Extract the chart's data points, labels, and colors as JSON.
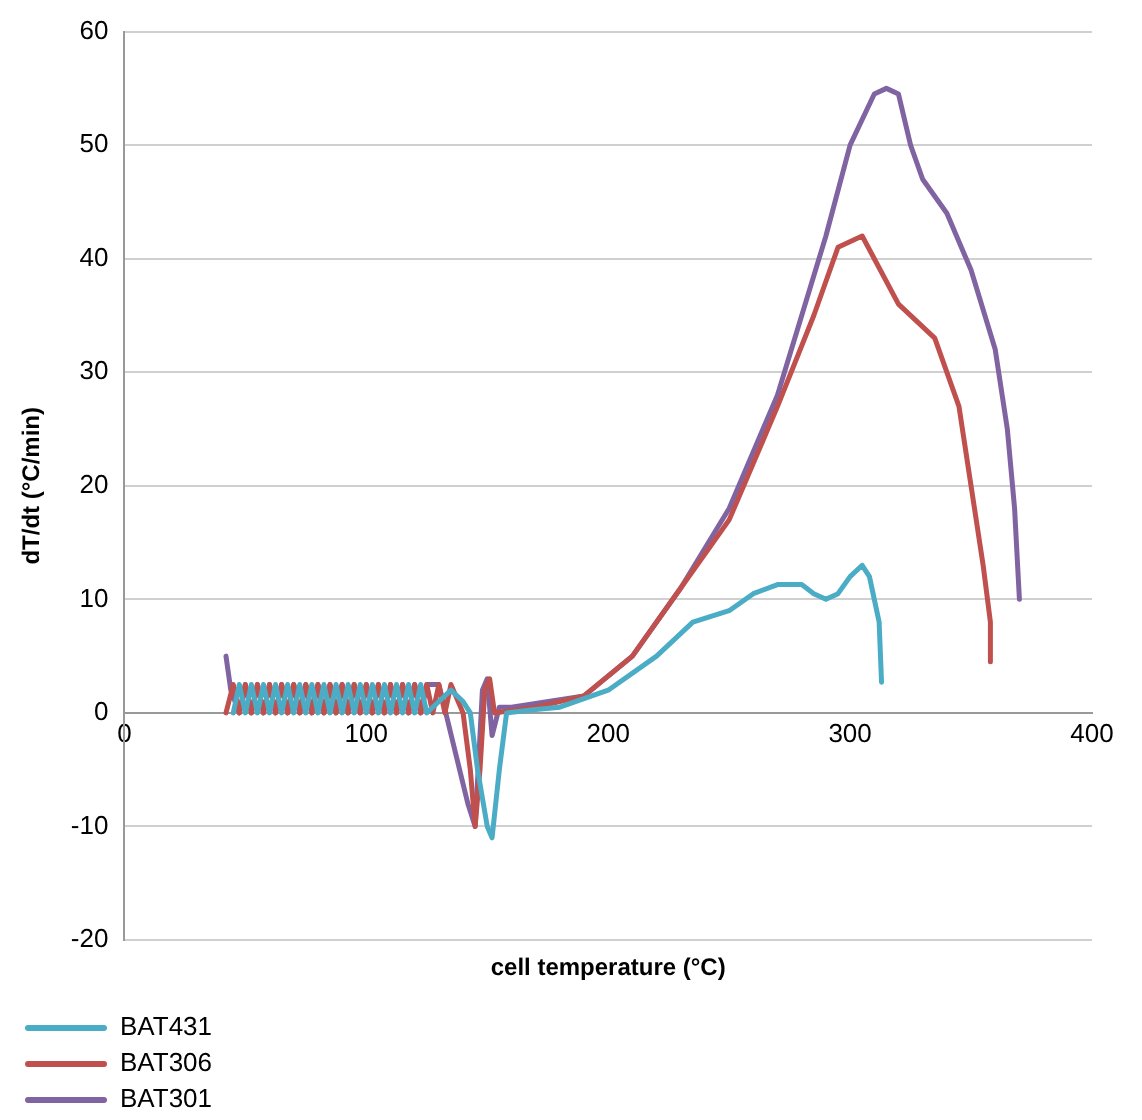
{
  "chart_data": {
    "type": "line",
    "xlabel": "cell temperature (°C)",
    "ylabel": "dT/dt (°C/min)",
    "xlim": [
      0,
      400
    ],
    "xticks": [
      0,
      100,
      200,
      300,
      400
    ],
    "ylim": [
      -20,
      60
    ],
    "yticks": [
      -20,
      -10,
      0,
      10,
      20,
      30,
      40,
      50,
      60
    ],
    "grid": "y",
    "legend": "bottom",
    "marker": "none",
    "line_style": "solid",
    "series": [
      {
        "name": "BAT431",
        "color": "#4bacc6",
        "x": [
          45,
          47.5,
          50,
          52.5,
          55,
          57.5,
          60,
          62.5,
          65,
          67.5,
          70,
          72.5,
          75,
          77.5,
          80,
          82.5,
          85,
          87.5,
          90,
          92.5,
          95,
          97.5,
          100,
          102.5,
          105,
          107.5,
          110,
          112.5,
          115,
          117.5,
          120,
          122.5,
          125,
          130,
          135,
          140,
          143,
          146,
          150,
          152,
          155,
          158,
          170,
          180,
          200,
          220,
          235,
          250,
          260,
          270,
          280,
          285,
          290,
          295,
          300,
          305,
          308,
          312,
          313
        ],
        "values": [
          0,
          2.5,
          0,
          2.5,
          0,
          2.5,
          0,
          2.5,
          0,
          2.5,
          0,
          2.5,
          0,
          2.5,
          0,
          2.5,
          0,
          2.5,
          0,
          2.5,
          0,
          2.5,
          0,
          2.5,
          0,
          2.5,
          0,
          2.5,
          0,
          2.5,
          0,
          2.5,
          0,
          1,
          2,
          1,
          0,
          -5,
          -10,
          -11,
          -5,
          0,
          0.3,
          0.5,
          2,
          5,
          8,
          9,
          10.5,
          11.3,
          11.3,
          10.5,
          10,
          10.5,
          12,
          13,
          12,
          8,
          2.7
        ]
      },
      {
        "name": "BAT306",
        "color": "#c0504d",
        "x": [
          42,
          45,
          47.5,
          50,
          52.5,
          55,
          57.5,
          60,
          62.5,
          65,
          67.5,
          70,
          72.5,
          75,
          77.5,
          80,
          82.5,
          85,
          87.5,
          90,
          92.5,
          95,
          97.5,
          100,
          102.5,
          105,
          107.5,
          110,
          112.5,
          115,
          117.5,
          120,
          122.5,
          125,
          127.5,
          130,
          132.5,
          135,
          140,
          143,
          145,
          147,
          149,
          151,
          153,
          170,
          190,
          210,
          230,
          250,
          270,
          285,
          295,
          305,
          310,
          320,
          335,
          345,
          350,
          355,
          358,
          358
        ],
        "values": [
          0,
          2.5,
          0,
          2.5,
          0,
          2.5,
          0,
          2.5,
          0,
          2.5,
          0,
          2.5,
          0,
          2.5,
          0,
          2.5,
          0,
          2.5,
          0,
          2.5,
          0,
          2.5,
          0,
          2.5,
          0,
          2.5,
          0,
          2.5,
          0,
          2.5,
          0,
          2.5,
          0,
          2.5,
          0,
          2.5,
          0,
          2.5,
          0,
          -5,
          -10,
          -5,
          2,
          3,
          0,
          0.5,
          1.5,
          5,
          11,
          17,
          27,
          35,
          41,
          42,
          40,
          36,
          33,
          27,
          20,
          13,
          8,
          4.5
        ]
      },
      {
        "name": "BAT301",
        "color": "#8064a2",
        "x": [
          42,
          44,
          47.5,
          50,
          52.5,
          55,
          57.5,
          60,
          62.5,
          65,
          67.5,
          70,
          72.5,
          75,
          77.5,
          80,
          82.5,
          85,
          87.5,
          90,
          92.5,
          95,
          97.5,
          100,
          102.5,
          105,
          107.5,
          110,
          112.5,
          115,
          117.5,
          120,
          122.5,
          125,
          130,
          142,
          145,
          148,
          150,
          152,
          155,
          160,
          190,
          210,
          230,
          250,
          270,
          290,
          300,
          310,
          315,
          320,
          325,
          330,
          340,
          350,
          360,
          365,
          368,
          370
        ],
        "values": [
          5,
          2,
          0,
          2.5,
          0,
          2.5,
          0,
          2.5,
          0,
          2.5,
          0,
          2.5,
          0,
          2.5,
          0,
          2.5,
          0,
          2.5,
          0,
          2.5,
          0,
          2.5,
          0,
          2.5,
          0,
          2.5,
          0,
          2.5,
          0,
          2.5,
          0,
          2.5,
          0,
          2.5,
          2.5,
          -8,
          -10,
          2,
          3,
          -2,
          0.5,
          0.5,
          1.5,
          5,
          11,
          18,
          28,
          42,
          50,
          54.5,
          55,
          54.5,
          50,
          47,
          44,
          39,
          32,
          25,
          18,
          10
        ]
      }
    ]
  }
}
